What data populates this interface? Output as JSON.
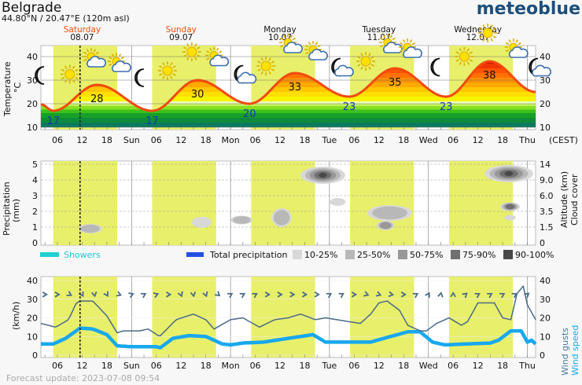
{
  "header": {
    "location": "Belgrade",
    "coords": "44.80°N / 20.47°E (120m asl)",
    "brand": "meteoblue",
    "footer": "Forecast update: 2023-07-08 09:54"
  },
  "days": [
    {
      "name": "Saturday",
      "date": "08.07",
      "weekend": true
    },
    {
      "name": "Sunday",
      "date": "09.07",
      "weekend": true
    },
    {
      "name": "Monday",
      "date": "10.07",
      "weekend": false
    },
    {
      "name": "Tuesday",
      "date": "11.07",
      "weekend": false
    },
    {
      "name": "Wednesday",
      "date": "12.07",
      "weekend": false
    }
  ],
  "colors": {
    "weekend": "#ee4c10",
    "temp_line": "#f04a10",
    "min_label": "#1a36b4",
    "daylight": "#e8ef6a",
    "gusts": "#4a6a8a",
    "speed": "#18a8ee",
    "showers": "#20d0d0",
    "total_precip": "#2450e0"
  },
  "x_ticks": [
    "06",
    "12",
    "18",
    "Sun",
    "06",
    "12",
    "18",
    "Mon",
    "06",
    "12",
    "18",
    "Tue",
    "06",
    "12",
    "18",
    "Wed",
    "06",
    "12",
    "18",
    "Thu"
  ],
  "timezone": "(CEST)",
  "now_hour": 11.5,
  "daylight_hours": [
    5,
    20.5
  ],
  "chart_data": [
    {
      "type": "line",
      "title": "Temperature",
      "ylabel": "Temperature",
      "yunit": "°C",
      "ylim": [
        10,
        45
      ],
      "yticks": [
        10,
        20,
        30,
        40
      ],
      "x_unit": "hours since Sat 08.07 00:00",
      "xlim": [
        2,
        122
      ],
      "keypoints": [
        [
          2,
          19.7
        ],
        [
          5,
          17
        ],
        [
          15.6,
          28
        ],
        [
          29,
          17
        ],
        [
          40,
          30
        ],
        [
          52.6,
          20
        ],
        [
          63.6,
          33
        ],
        [
          76.8,
          23
        ],
        [
          87.9,
          35
        ],
        [
          100.3,
          23
        ],
        [
          110.8,
          38
        ],
        [
          122,
          25
        ]
      ],
      "max_labels": [
        {
          "hour": 15.6,
          "value": "28"
        },
        {
          "hour": 40,
          "value": "30"
        },
        {
          "hour": 63.6,
          "value": "33"
        },
        {
          "hour": 87.9,
          "value": "35"
        },
        {
          "hour": 110.8,
          "value": "38"
        }
      ],
      "min_labels": [
        {
          "hour": 5,
          "value": "17"
        },
        {
          "hour": 29,
          "value": "17"
        },
        {
          "hour": 52.6,
          "value": "20"
        },
        {
          "hour": 76.8,
          "value": "23"
        },
        {
          "hour": 100.3,
          "value": "23"
        }
      ],
      "icons": [
        {
          "hour": 2.2,
          "level": 32,
          "type": "moon"
        },
        {
          "hour": 9,
          "level": 32.5,
          "type": "sun"
        },
        {
          "hour": 14.6,
          "level": 39,
          "type": "sun-cloud"
        },
        {
          "hour": 20.7,
          "level": 37,
          "type": "sun-cloud"
        },
        {
          "hour": 26.4,
          "level": 31,
          "type": "moon"
        },
        {
          "hour": 32.7,
          "level": 34,
          "type": "sun"
        },
        {
          "hour": 38.6,
          "level": 42,
          "type": "sun"
        },
        {
          "hour": 44.4,
          "level": 39.5,
          "type": "sun-cloud"
        },
        {
          "hour": 50.9,
          "level": 32.5,
          "type": "moon-cloud"
        },
        {
          "hour": 56.6,
          "level": 36,
          "type": "sun"
        },
        {
          "hour": 62.3,
          "level": 45,
          "type": "sun-cloud"
        },
        {
          "hour": 68.4,
          "level": 42,
          "type": "sun-cloud"
        },
        {
          "hour": 74.5,
          "level": 35.5,
          "type": "moon-cloud"
        },
        {
          "hour": 80.8,
          "level": 38,
          "type": "sun"
        },
        {
          "hour": 86.5,
          "level": 45,
          "type": "sun-cloud"
        },
        {
          "hour": 91.3,
          "level": 43,
          "type": "sun-cloud"
        },
        {
          "hour": 98.2,
          "level": 35.5,
          "type": "moon"
        },
        {
          "hour": 104.7,
          "level": 40,
          "type": "sun"
        },
        {
          "hour": 110.4,
          "level": 50,
          "type": "sun"
        },
        {
          "hour": 117,
          "level": 43,
          "type": "sun-cloud"
        },
        {
          "hour": 122.4,
          "level": 35.5,
          "type": "moon-cloud"
        }
      ]
    },
    {
      "type": "heatmap",
      "title": "Precipitation and cloud cover",
      "ylabel": "Precipitation",
      "yunit": "(mm)",
      "ylim": [
        0,
        5
      ],
      "yticks": [
        0,
        1,
        2,
        3,
        4,
        5
      ],
      "right_label_1": "Altitude (km)",
      "right_label_2": "Cloud cover",
      "right_ticks": [
        "0",
        "1.5",
        "3.5",
        "6.0",
        "9.0",
        "14"
      ],
      "precipitation": [],
      "cloud_blobs": [
        {
          "hour": 14,
          "level": 0.9,
          "w": 5,
          "h": 0.4,
          "shade": 1
        },
        {
          "hour": 41,
          "level": 1.3,
          "w": 4,
          "h": 0.5,
          "shade": 0
        },
        {
          "hour": 50.7,
          "level": 1.45,
          "w": 4.5,
          "h": 0.35,
          "shade": 1
        },
        {
          "hour": 60.4,
          "level": 1.6,
          "w": 4,
          "h": 1.0,
          "shade": 1
        },
        {
          "hour": 70.4,
          "level": 4.3,
          "w": 10,
          "h": 0.9,
          "shade": 4
        },
        {
          "hour": 74,
          "level": 2.6,
          "w": 3,
          "h": 0.3,
          "shade": 0
        },
        {
          "hour": 86.6,
          "level": 1.9,
          "w": 10,
          "h": 0.8,
          "shade": 1
        },
        {
          "hour": 85.6,
          "level": 1.1,
          "w": 3.5,
          "h": 0.4,
          "shade": 2
        },
        {
          "hour": 115.5,
          "level": 4.4,
          "w": 11,
          "h": 0.9,
          "shade": 4
        },
        {
          "hour": 115.8,
          "level": 2.3,
          "w": 4,
          "h": 0.35,
          "shade": 3
        },
        {
          "hour": 115.8,
          "level": 1.6,
          "w": 2,
          "h": 0.15,
          "shade": 0
        }
      ],
      "legend": {
        "showers": "Showers",
        "total": "Total precipitation",
        "cover": [
          {
            "label": "10-25%",
            "color": "#d8d8d8"
          },
          {
            "label": "25-50%",
            "color": "#b8b8b8"
          },
          {
            "label": "50-75%",
            "color": "#989898"
          },
          {
            "label": "75-90%",
            "color": "#707070"
          },
          {
            "label": "90-100%",
            "color": "#484848"
          }
        ]
      }
    },
    {
      "type": "line",
      "title": "Wind",
      "ylabel": "(km/h)",
      "ylim": [
        0,
        40
      ],
      "yticks": [
        0,
        10,
        20,
        30,
        40
      ],
      "series": [
        {
          "name": "Wind gusts",
          "points": [
            [
              2,
              17
            ],
            [
              5.6,
              15
            ],
            [
              8.7,
              19
            ],
            [
              10.6,
              28
            ],
            [
              11.5,
              29
            ],
            [
              14.6,
              29
            ],
            [
              18,
              21
            ],
            [
              20.5,
              12
            ],
            [
              22,
              13
            ],
            [
              26,
              13
            ],
            [
              28,
              14
            ],
            [
              30.8,
              10
            ],
            [
              34.8,
              19
            ],
            [
              39,
              22
            ],
            [
              42,
              19
            ],
            [
              44,
              14
            ],
            [
              48,
              19
            ],
            [
              51,
              20
            ],
            [
              55,
              15
            ],
            [
              58.7,
              19
            ],
            [
              62,
              20
            ],
            [
              65,
              22
            ],
            [
              68.6,
              19
            ],
            [
              71,
              20
            ],
            [
              76.6,
              18
            ],
            [
              79.5,
              17
            ],
            [
              82,
              22
            ],
            [
              84,
              28
            ],
            [
              86,
              29
            ],
            [
              89,
              24
            ],
            [
              91,
              16
            ],
            [
              94,
              13
            ],
            [
              95.5,
              13
            ],
            [
              98,
              17
            ],
            [
              101,
              20
            ],
            [
              104,
              16
            ],
            [
              105.5,
              18
            ],
            [
              108,
              28
            ],
            [
              112,
              28
            ],
            [
              114,
              20
            ],
            [
              116,
              19
            ],
            [
              117.5,
              33
            ],
            [
              119,
              37
            ],
            [
              120,
              27
            ],
            [
              122,
              19
            ]
          ]
        },
        {
          "name": "Wind speed",
          "points": [
            [
              2,
              6
            ],
            [
              5,
              6
            ],
            [
              8,
              9
            ],
            [
              11.5,
              14.5
            ],
            [
              14.6,
              14
            ],
            [
              18,
              11
            ],
            [
              20.5,
              5
            ],
            [
              24,
              4.5
            ],
            [
              30,
              4.5
            ],
            [
              31,
              4
            ],
            [
              34,
              9
            ],
            [
              38,
              10.5
            ],
            [
              42,
              10
            ],
            [
              46,
              6
            ],
            [
              48,
              5.5
            ],
            [
              51,
              6.5
            ],
            [
              56,
              7
            ],
            [
              62,
              9
            ],
            [
              68,
              11
            ],
            [
              71,
              7
            ],
            [
              76,
              7
            ],
            [
              82,
              7
            ],
            [
              86,
              9.5
            ],
            [
              91,
              12.5
            ],
            [
              94,
              12.5
            ],
            [
              97,
              7
            ],
            [
              100,
              5.5
            ],
            [
              105,
              6
            ],
            [
              111,
              6.5
            ],
            [
              113,
              8
            ],
            [
              116,
              13
            ],
            [
              118.5,
              13
            ],
            [
              120,
              7
            ],
            [
              121,
              8
            ],
            [
              122,
              6
            ]
          ]
        }
      ],
      "wind_direction_deg": [
        0,
        0,
        30,
        60,
        80,
        60,
        20,
        -20,
        -30,
        -20,
        0,
        70,
        80,
        70,
        40,
        -30,
        -30,
        -30,
        0,
        0,
        0,
        0,
        0,
        -30,
        -30,
        0,
        20,
        20,
        10,
        0,
        -30,
        -60,
        -80,
        -90,
        -40,
        -30,
        -30,
        -30,
        -30,
        -40
      ]
    }
  ]
}
